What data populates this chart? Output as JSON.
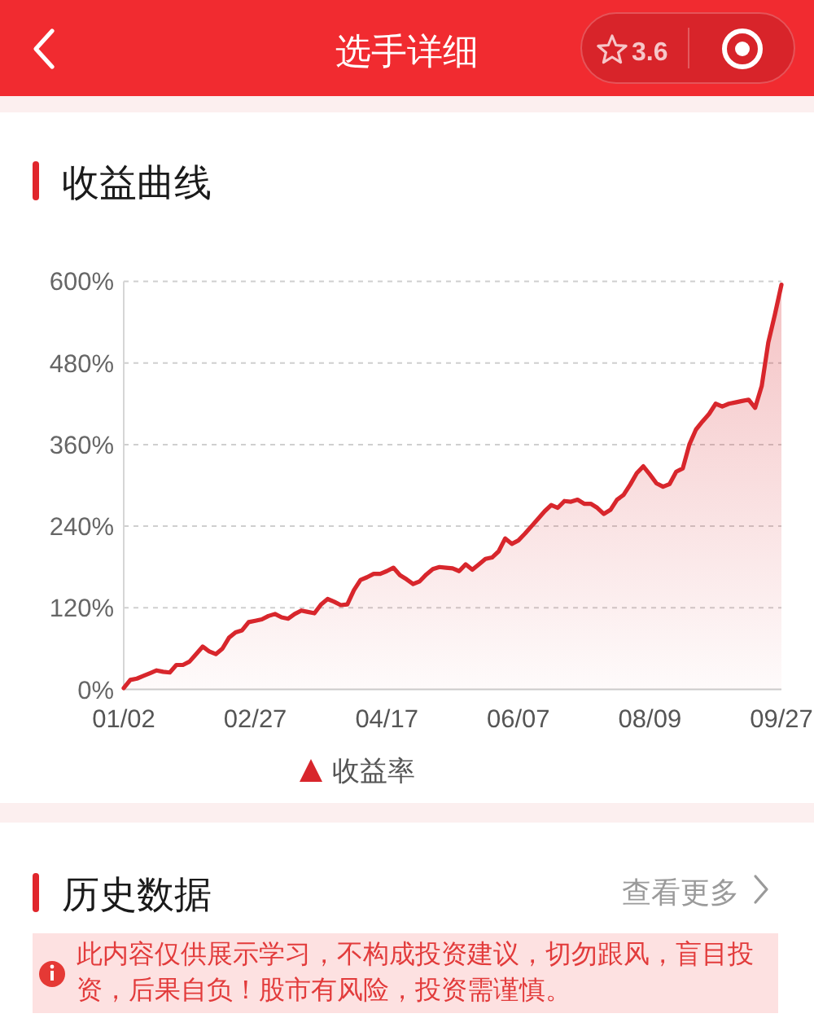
{
  "chart_data": {
    "type": "area",
    "title": "收益曲线",
    "annotations": [
      "选手详细",
      "3.6",
      "历史数据",
      "查看更多",
      "此内容仅供展示学习，不构成投资建议，切勿跟风，盲目投资，后果自负！股市有风险，投资需谨慎。"
    ],
    "categories": [
      "01/02",
      null,
      null,
      null,
      null,
      null,
      null,
      null,
      null,
      null,
      null,
      null,
      null,
      null,
      null,
      null,
      null,
      null,
      null,
      null,
      "02/27",
      null,
      null,
      null,
      null,
      null,
      null,
      null,
      null,
      null,
      null,
      null,
      null,
      null,
      null,
      null,
      null,
      null,
      null,
      null,
      "04/17",
      null,
      null,
      null,
      null,
      null,
      null,
      null,
      null,
      null,
      null,
      null,
      null,
      null,
      null,
      null,
      null,
      null,
      null,
      null,
      "06/07",
      null,
      null,
      null,
      null,
      null,
      null,
      null,
      null,
      null,
      null,
      null,
      null,
      null,
      null,
      null,
      null,
      null,
      null,
      null,
      "08/09",
      null,
      null,
      null,
      null,
      null,
      null,
      null,
      null,
      null,
      null,
      null,
      null,
      null,
      null,
      null,
      null,
      null,
      null,
      null,
      "09/27"
    ],
    "series": [
      {
        "name": "收益率",
        "color": "#d8262c",
        "values": [
          2,
          14,
          16,
          20,
          24,
          28,
          26,
          25,
          36,
          36,
          41,
          52,
          63,
          56,
          52,
          60,
          76,
          84,
          87,
          99,
          101,
          103,
          108,
          111,
          106,
          104,
          111,
          116,
          114,
          112,
          125,
          133,
          129,
          124,
          125,
          146,
          161,
          165,
          170,
          170,
          174,
          179,
          168,
          162,
          155,
          159,
          169,
          177,
          180,
          179,
          178,
          174,
          184,
          176,
          184,
          192,
          194,
          203,
          222,
          214,
          219,
          229,
          240,
          251,
          262,
          271,
          267,
          277,
          276,
          279,
          273,
          273,
          267,
          258,
          264,
          279,
          286,
          301,
          318,
          328,
          316,
          303,
          298,
          302,
          320,
          325,
          360,
          382,
          394,
          405,
          420,
          416,
          420,
          422,
          424,
          426,
          414,
          446,
          510,
          551,
          595
        ]
      }
    ],
    "ylim": [
      0,
      600
    ],
    "yticks": [
      {
        "value": 0,
        "label": "0%"
      },
      {
        "value": 120,
        "label": "120%"
      },
      {
        "value": 240,
        "label": "240%"
      },
      {
        "value": 360,
        "label": "360%"
      },
      {
        "value": 480,
        "label": "480%"
      },
      {
        "value": 600,
        "label": "600%"
      }
    ],
    "grid": "y",
    "legend": "bottom"
  }
}
